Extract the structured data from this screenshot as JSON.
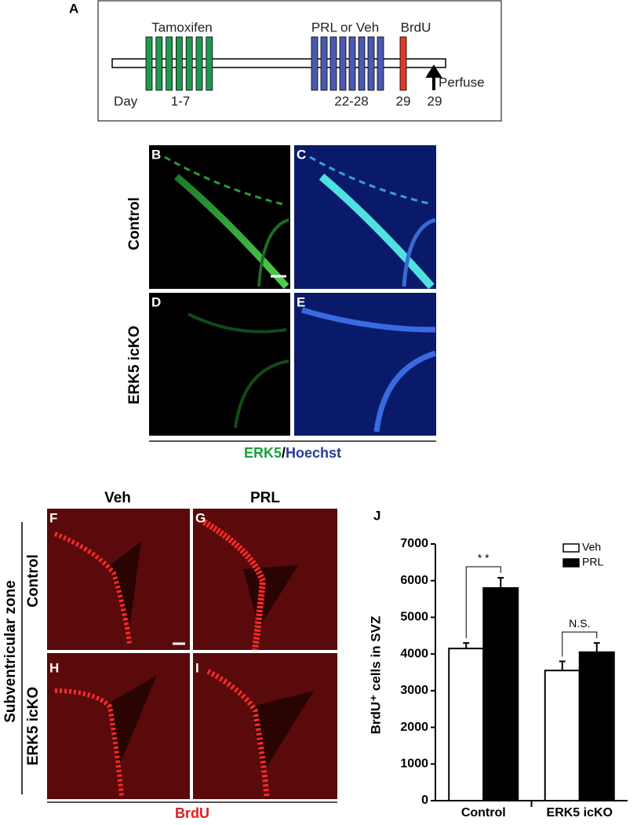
{
  "timeline": {
    "panel": "A",
    "drugs": [
      "Tamoxifen",
      "PRL or Veh",
      "BrdU"
    ],
    "day_label": "Day",
    "days": [
      "1-7",
      "22-28",
      "29",
      "29"
    ],
    "perfuse": "Perfuse"
  },
  "images_top": {
    "panels": [
      "B",
      "C",
      "D",
      "E"
    ],
    "rows": [
      "Control",
      "ERK5 icKO"
    ],
    "stain": [
      "ERK5",
      "/",
      "Hoechst"
    ]
  },
  "images_bottom": {
    "columns": [
      "Veh",
      "PRL"
    ],
    "panels": [
      "F",
      "G",
      "H",
      "I"
    ],
    "group": "Subventricular zone",
    "rows": [
      "Control",
      "ERK5 icKO"
    ],
    "stain": "BrdU"
  },
  "chart_data": {
    "type": "bar",
    "title": "J",
    "y_label": "BrdU⁺ cells in SVZ",
    "categories": [
      "Control",
      "ERK5 icKO"
    ],
    "series": [
      {
        "name": "Veh",
        "color": "#ffffff",
        "values": [
          4150,
          3550
        ],
        "errors": [
          150,
          250
        ]
      },
      {
        "name": "PRL",
        "color": "#000000",
        "values": [
          5800,
          4050
        ],
        "errors": [
          280,
          250
        ]
      }
    ],
    "ylim": [
      0,
      7000
    ],
    "yticks": [
      0,
      1000,
      2000,
      3000,
      4000,
      5000,
      6000,
      7000
    ],
    "annotations": [
      "* *",
      "N.S."
    ]
  }
}
